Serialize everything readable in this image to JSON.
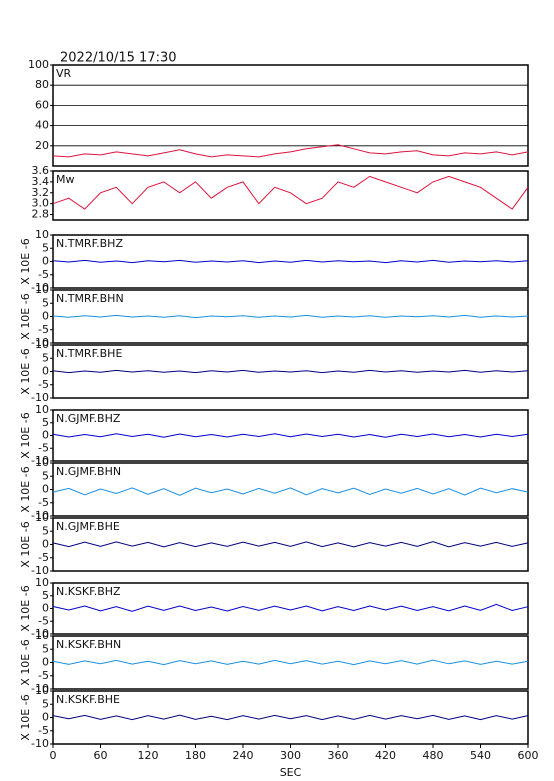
{
  "header": {
    "title": "2022/10/15 17:30"
  },
  "chart_data": [
    {
      "type": "line",
      "title": "VR",
      "xlim": [
        0,
        600
      ],
      "ylim": [
        0,
        100
      ],
      "yticks": [
        20,
        40,
        60,
        80,
        100
      ],
      "grid": true,
      "x": [
        0,
        20,
        40,
        60,
        80,
        100,
        120,
        140,
        160,
        180,
        200,
        220,
        240,
        260,
        280,
        300,
        320,
        340,
        360,
        380,
        400,
        420,
        440,
        460,
        480,
        500,
        520,
        540,
        560,
        580,
        600
      ],
      "series": [
        {
          "color": "#dc143c",
          "values": [
            10,
            9,
            12,
            11,
            14,
            12,
            10,
            13,
            16,
            12,
            9,
            11,
            10,
            9,
            12,
            14,
            17,
            19,
            21,
            17,
            13,
            12,
            14,
            15,
            11,
            10,
            13,
            12,
            14,
            11,
            14
          ]
        }
      ]
    },
    {
      "type": "line",
      "title": "Mw",
      "xlim": [
        0,
        600
      ],
      "ylim": [
        2.7,
        3.6
      ],
      "yticks": [
        {
          "value": 2.8,
          "label": "2.8"
        },
        {
          "value": 3,
          "label": "3.0"
        },
        3.2,
        3.4,
        3.6
      ],
      "grid": false,
      "x": [
        0,
        20,
        40,
        60,
        80,
        100,
        120,
        140,
        160,
        180,
        200,
        220,
        240,
        260,
        280,
        300,
        320,
        340,
        360,
        380,
        400,
        420,
        440,
        460,
        480,
        500,
        520,
        540,
        560,
        580,
        600
      ],
      "series": [
        {
          "color": "#dc143c",
          "values": [
            3.0,
            3.1,
            2.9,
            3.2,
            3.3,
            3.0,
            3.3,
            3.4,
            3.2,
            3.4,
            3.1,
            3.3,
            3.4,
            3.0,
            3.3,
            3.2,
            3.0,
            3.1,
            3.4,
            3.3,
            3.5,
            3.4,
            3.3,
            3.2,
            3.4,
            3.5,
            3.4,
            3.3,
            3.1,
            2.9,
            3.3
          ]
        }
      ]
    },
    {
      "type": "line",
      "title": "N.TMRF.BHZ",
      "ylabel": "X 10E -6",
      "xlim": [
        0,
        600
      ],
      "ylim": [
        -10,
        10
      ],
      "yticks": [
        -10,
        -5,
        0,
        5,
        10
      ],
      "grid": false,
      "x": [
        0,
        20,
        40,
        60,
        80,
        100,
        120,
        140,
        160,
        180,
        200,
        220,
        240,
        260,
        280,
        300,
        320,
        340,
        360,
        380,
        400,
        420,
        440,
        460,
        480,
        500,
        520,
        540,
        560,
        580,
        600
      ],
      "series": [
        {
          "color": "#0000cd",
          "values": [
            0.3,
            -0.2,
            0.4,
            -0.3,
            0.2,
            -0.4,
            0.3,
            -0.1,
            0.4,
            -0.3,
            0.2,
            -0.2,
            0.3,
            -0.4,
            0.2,
            -0.3,
            0.4,
            -0.2,
            0.3,
            -0.1,
            0.2,
            -0.4,
            0.3,
            -0.2,
            0.4,
            -0.3,
            0.2,
            -0.1,
            0.3,
            -0.2,
            0.3
          ]
        }
      ]
    },
    {
      "type": "line",
      "title": "N.TMRF.BHN",
      "ylabel": "X 10E -6",
      "xlim": [
        0,
        600
      ],
      "ylim": [
        -10,
        10
      ],
      "yticks": [
        -10,
        -5,
        0,
        5,
        10
      ],
      "grid": false,
      "x": [
        0,
        20,
        40,
        60,
        80,
        100,
        120,
        140,
        160,
        180,
        200,
        220,
        240,
        260,
        280,
        300,
        320,
        340,
        360,
        380,
        400,
        420,
        440,
        460,
        480,
        500,
        520,
        540,
        560,
        580,
        600
      ],
      "series": [
        {
          "color": "#1a8fe0",
          "values": [
            0.2,
            -0.3,
            0.3,
            -0.2,
            0.4,
            -0.2,
            0.2,
            -0.3,
            0.3,
            -0.4,
            0.2,
            -0.1,
            0.3,
            -0.3,
            0.2,
            -0.2,
            0.4,
            -0.3,
            0.2,
            -0.2,
            0.3,
            -0.3,
            0.2,
            -0.1,
            0.3,
            -0.2,
            0.4,
            -0.3,
            0.2,
            -0.2,
            0.2
          ]
        }
      ]
    },
    {
      "type": "line",
      "title": "N.TMRF.BHE",
      "ylabel": "X 10E -6",
      "xlim": [
        0,
        600
      ],
      "ylim": [
        -10,
        10
      ],
      "yticks": [
        -10,
        -5,
        0,
        5,
        10
      ],
      "grid": false,
      "x": [
        0,
        20,
        40,
        60,
        80,
        100,
        120,
        140,
        160,
        180,
        200,
        220,
        240,
        260,
        280,
        300,
        320,
        340,
        360,
        380,
        400,
        420,
        440,
        460,
        480,
        500,
        520,
        540,
        560,
        580,
        600
      ],
      "series": [
        {
          "color": "#000080",
          "values": [
            0.3,
            -0.4,
            0.2,
            -0.3,
            0.4,
            -0.2,
            0.3,
            -0.3,
            0.2,
            -0.4,
            0.3,
            -0.2,
            0.4,
            -0.3,
            0.2,
            -0.2,
            0.3,
            -0.4,
            0.2,
            -0.3,
            0.4,
            -0.2,
            0.3,
            -0.3,
            0.2,
            -0.2,
            0.4,
            -0.3,
            0.3,
            -0.2,
            0.3
          ]
        }
      ]
    },
    {
      "type": "line",
      "title": "N.GJMF.BHZ",
      "ylabel": "X 10E -6",
      "xlim": [
        0,
        600
      ],
      "ylim": [
        -10,
        10
      ],
      "yticks": [
        -10,
        -5,
        0,
        5,
        10
      ],
      "grid": false,
      "x": [
        0,
        20,
        40,
        60,
        80,
        100,
        120,
        140,
        160,
        180,
        200,
        220,
        240,
        260,
        280,
        300,
        320,
        340,
        360,
        380,
        400,
        420,
        440,
        460,
        480,
        500,
        520,
        540,
        560,
        580,
        600
      ],
      "series": [
        {
          "color": "#0000cd",
          "values": [
            0.5,
            -0.6,
            0.4,
            -0.5,
            0.7,
            -0.4,
            0.5,
            -0.7,
            0.6,
            -0.5,
            0.4,
            -0.6,
            0.5,
            -0.4,
            0.7,
            -0.5,
            0.6,
            -0.4,
            0.5,
            -0.6,
            0.4,
            -0.7,
            0.5,
            -0.4,
            0.6,
            -0.5,
            0.4,
            -0.6,
            0.5,
            -0.4,
            0.5
          ]
        }
      ]
    },
    {
      "type": "line",
      "title": "N.GJMF.BHN",
      "ylabel": "X 10E -6",
      "xlim": [
        0,
        600
      ],
      "ylim": [
        -10,
        10
      ],
      "yticks": [
        -10,
        -5,
        0,
        5,
        10
      ],
      "grid": false,
      "x": [
        0,
        20,
        40,
        60,
        80,
        100,
        120,
        140,
        160,
        180,
        200,
        220,
        240,
        260,
        280,
        300,
        320,
        340,
        360,
        380,
        400,
        420,
        440,
        460,
        480,
        500,
        520,
        540,
        560,
        580,
        600
      ],
      "series": [
        {
          "color": "#1a8fe0",
          "values": [
            -1.0,
            0.4,
            -2.0,
            0.2,
            -1.5,
            0.6,
            -1.8,
            0.3,
            -2.2,
            0.5,
            -1.2,
            0.2,
            -1.7,
            0.4,
            -1.4,
            0.6,
            -2.0,
            0.3,
            -1.3,
            0.5,
            -1.9,
            0.2,
            -1.4,
            0.4,
            -1.7,
            0.3,
            -2.1,
            0.5,
            -1.2,
            0.3,
            -1.0
          ]
        }
      ]
    },
    {
      "type": "line",
      "title": "N.GJMF.BHE",
      "ylabel": "X 10E -6",
      "xlim": [
        0,
        600
      ],
      "ylim": [
        -10,
        10
      ],
      "yticks": [
        -10,
        -5,
        0,
        5,
        10
      ],
      "grid": false,
      "x": [
        0,
        20,
        40,
        60,
        80,
        100,
        120,
        140,
        160,
        180,
        200,
        220,
        240,
        260,
        280,
        300,
        320,
        340,
        360,
        380,
        400,
        420,
        440,
        460,
        480,
        500,
        520,
        540,
        560,
        580,
        600
      ],
      "series": [
        {
          "color": "#000080",
          "values": [
            0.6,
            -0.8,
            0.9,
            -0.7,
            1.0,
            -0.6,
            0.8,
            -0.9,
            0.7,
            -0.8,
            0.6,
            -0.7,
            0.9,
            -0.6,
            0.8,
            -0.7,
            1.0,
            -0.8,
            0.6,
            -0.9,
            0.7,
            -0.6,
            0.8,
            -0.7,
            1.1,
            -0.9,
            0.7,
            -0.6,
            0.8,
            -0.7,
            0.6
          ]
        }
      ]
    },
    {
      "type": "line",
      "title": "N.KSKF.BHZ",
      "ylabel": "X 10E -6",
      "xlim": [
        0,
        600
      ],
      "ylim": [
        -10,
        10
      ],
      "yticks": [
        -10,
        -5,
        0,
        5,
        10
      ],
      "grid": false,
      "x": [
        0,
        20,
        40,
        60,
        80,
        100,
        120,
        140,
        160,
        180,
        200,
        220,
        240,
        260,
        280,
        300,
        320,
        340,
        360,
        380,
        400,
        420,
        440,
        460,
        480,
        500,
        520,
        540,
        560,
        580,
        600
      ],
      "series": [
        {
          "color": "#0000cd",
          "values": [
            0.8,
            -0.6,
            1.0,
            -0.9,
            0.7,
            -1.1,
            0.9,
            -0.7,
            1.0,
            -0.8,
            0.6,
            -1.0,
            0.8,
            -0.7,
            0.9,
            -0.6,
            1.0,
            -0.9,
            0.7,
            -0.8,
            1.0,
            -0.6,
            0.9,
            -0.8,
            0.7,
            -0.9,
            1.0,
            -0.7,
            1.6,
            -0.8,
            0.7
          ]
        }
      ]
    },
    {
      "type": "line",
      "title": "N.KSKF.BHN",
      "ylabel": "X 10E -6",
      "xlim": [
        0,
        600
      ],
      "ylim": [
        -10,
        10
      ],
      "yticks": [
        -10,
        -5,
        0,
        5,
        10
      ],
      "grid": false,
      "x": [
        0,
        20,
        40,
        60,
        80,
        100,
        120,
        140,
        160,
        180,
        200,
        220,
        240,
        260,
        280,
        300,
        320,
        340,
        360,
        380,
        400,
        420,
        440,
        460,
        480,
        500,
        520,
        540,
        560,
        580,
        600
      ],
      "series": [
        {
          "color": "#1a8fe0",
          "values": [
            0.5,
            -0.7,
            0.6,
            -0.5,
            0.8,
            -0.6,
            0.5,
            -0.8,
            0.7,
            -0.5,
            0.6,
            -0.7,
            0.5,
            -0.6,
            0.8,
            -0.5,
            0.7,
            -0.6,
            0.5,
            -0.8,
            0.6,
            -0.5,
            0.7,
            -0.6,
            0.9,
            -0.5,
            0.6,
            -0.7,
            0.5,
            -0.6,
            0.5
          ]
        }
      ]
    },
    {
      "type": "line",
      "title": "N.KSKF.BHE",
      "ylabel": "X 10E -6",
      "xlabel": "SEC",
      "xlim": [
        0,
        600
      ],
      "xticks": [
        0,
        60,
        120,
        180,
        240,
        300,
        360,
        420,
        480,
        540,
        600
      ],
      "ylim": [
        -10,
        10
      ],
      "yticks": [
        -10,
        -5,
        0,
        5,
        10
      ],
      "grid": false,
      "x": [
        0,
        20,
        40,
        60,
        80,
        100,
        120,
        140,
        160,
        180,
        200,
        220,
        240,
        260,
        280,
        300,
        320,
        340,
        360,
        380,
        400,
        420,
        440,
        460,
        480,
        500,
        520,
        540,
        560,
        580,
        600
      ],
      "series": [
        {
          "color": "#000080",
          "values": [
            0.7,
            -0.5,
            0.8,
            -0.7,
            0.6,
            -0.8,
            0.7,
            -0.6,
            0.9,
            -0.7,
            0.5,
            -0.8,
            0.7,
            -0.6,
            0.8,
            -0.5,
            0.7,
            -0.8,
            0.6,
            -0.7,
            0.8,
            -0.6,
            0.7,
            -0.5,
            0.8,
            -0.7,
            0.6,
            -0.8,
            0.7,
            -0.6,
            0.7
          ]
        }
      ]
    }
  ]
}
